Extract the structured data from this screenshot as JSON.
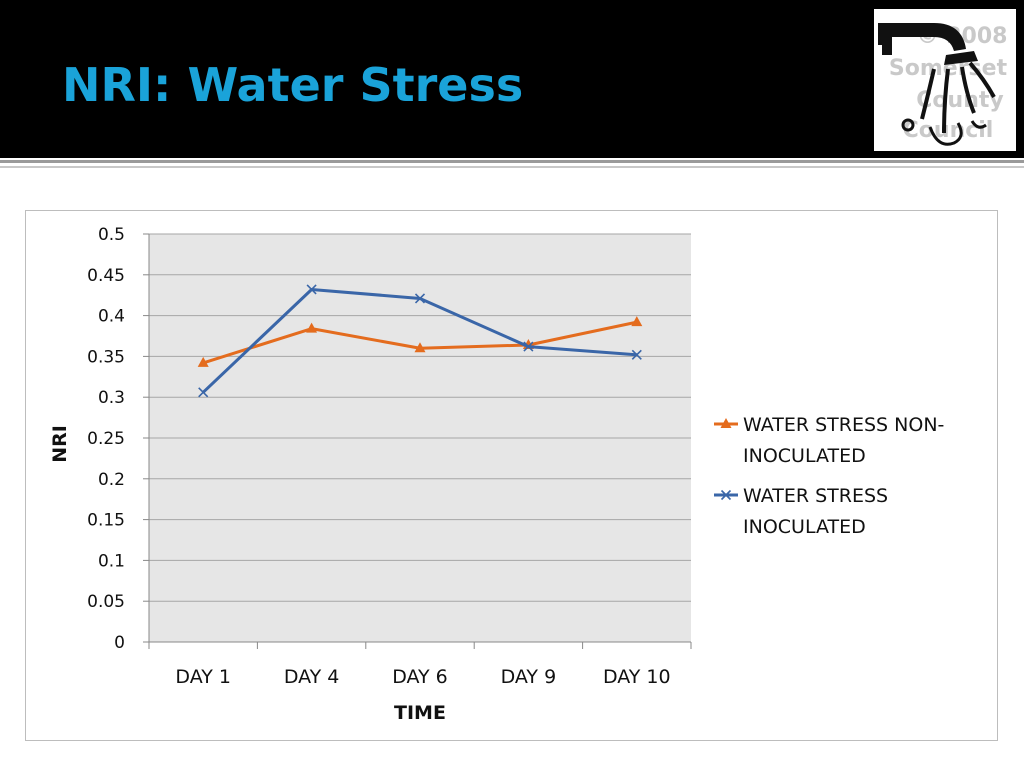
{
  "slide": {
    "title": "NRI: Water Stress",
    "logo_text": [
      "© 2008",
      "Somerset",
      "County",
      "Council"
    ]
  },
  "colors": {
    "title": "#1aa3d9",
    "plot_background": "#e6e6e6",
    "series_non_inoculated": "#e46c1e",
    "series_inoculated": "#3a66a8"
  },
  "chart_data": {
    "type": "line",
    "title": "",
    "xlabel": "TIME",
    "ylabel": "NRI",
    "categories": [
      "DAY 1",
      "DAY 4",
      "DAY 6",
      "DAY 9",
      "DAY 10"
    ],
    "ylim": [
      0,
      0.5
    ],
    "yticks": [
      "0",
      "0.05",
      "0.1",
      "0.15",
      "0.2",
      "0.25",
      "0.3",
      "0.35",
      "0.4",
      "0.45",
      "0.5"
    ],
    "grid": true,
    "legend_position": "right",
    "series": [
      {
        "name": "WATER STRESS NON-INOCULATED",
        "legend_lines": [
          "WATER STRESS NON-",
          "INOCULATED"
        ],
        "marker": "triangle",
        "values": [
          0.342,
          0.384,
          0.36,
          0.364,
          0.392
        ]
      },
      {
        "name": "WATER STRESS INOCULATED",
        "legend_lines": [
          "WATER STRESS",
          "INOCULATED"
        ],
        "marker": "x",
        "values": [
          0.306,
          0.432,
          0.421,
          0.362,
          0.352
        ]
      }
    ]
  }
}
